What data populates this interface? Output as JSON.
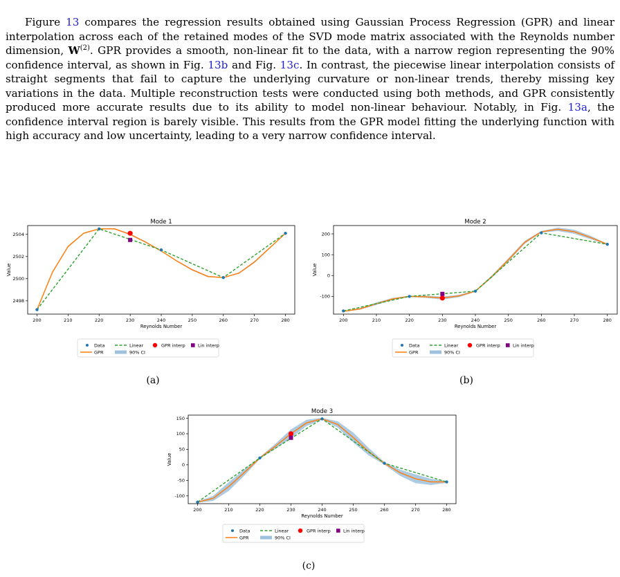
{
  "paragraph": {
    "s1": "Figure ",
    "ref1": "13",
    "s2": " compares the regression results obtained using Gaussian Process Regression (GPR) and linear interpolation across each of the retained modes of the SVD mode matrix associated with the Reynolds number dimension, ",
    "matrix_symbol": "W",
    "matrix_sup": "(2)",
    "s3": ". GPR provides a smooth, non-linear fit to the data, with a narrow region representing the 90% confidence interval, as shown in Fig. ",
    "ref2": "13b",
    "s4": " and Fig. ",
    "ref3": "13c",
    "s5": ". In contrast, the piecewise linear interpolation consists of straight segments that fail to capture the underlying curvature or non-linear trends, thereby missing key variations in the data. Multiple reconstruction tests were conducted using both methods, and GPR consistently produced more accurate results due to its ability to model non-linear behaviour. Notably, in Fig. ",
    "ref4": "13a",
    "s6": ", the confidence interval region is barely visible. This results from the GPR model fitting the underlying function with high accuracy and low uncertainty, leading to a very narrow confidence interval.",
    "link_color": "#1f1fd0"
  },
  "captions": [
    "(a)",
    "(b)",
    "(c)"
  ],
  "legend": {
    "data": "Data",
    "linear": "Linear",
    "gpr_interp": "GPR interp",
    "lin_interp": "Lin interp",
    "gpr": "GPR",
    "ci": "90% CI"
  },
  "colors": {
    "data": "#1f77b4",
    "gpr": "#ff7f0e",
    "linear": "#2ca02c",
    "ci": "#9ec1dd",
    "gpr_interp": "#ff0000",
    "lin_interp": "#800080"
  },
  "chart_data": [
    {
      "type": "line",
      "title": "Mode 1",
      "xlabel": "Reynolds Number",
      "ylabel": "Value",
      "xlim": [
        197,
        283
      ],
      "ylim": [
        2496.8,
        2504.8
      ],
      "xticks": [
        200,
        210,
        220,
        230,
        240,
        250,
        260,
        270,
        280
      ],
      "yticks": [
        2498,
        2500,
        2502,
        2504
      ],
      "data": {
        "x": [
          200,
          220,
          240,
          260,
          280
        ],
        "y": [
          2497.2,
          2504.5,
          2502.6,
          2500.1,
          2504.1
        ]
      },
      "gpr": {
        "x": [
          200,
          205,
          210,
          215,
          220,
          225,
          230,
          235,
          240,
          245,
          250,
          255,
          260,
          265,
          270,
          275,
          280
        ],
        "y": [
          2497.2,
          2500.6,
          2502.9,
          2504.1,
          2504.5,
          2504.5,
          2504.0,
          2503.3,
          2502.5,
          2501.6,
          2500.8,
          2500.2,
          2500.1,
          2500.5,
          2501.5,
          2502.8,
          2504.1
        ]
      },
      "ci_halfwidth": [
        0.02,
        0.05,
        0.07,
        0.06,
        0.03,
        0.05,
        0.07,
        0.06,
        0.03,
        0.05,
        0.07,
        0.06,
        0.03,
        0.06,
        0.08,
        0.07,
        0.02
      ],
      "gpr_interp": {
        "x": 230,
        "y": 2504.1
      },
      "lin_interp": {
        "x": 230,
        "y": 2503.5
      }
    },
    {
      "type": "line",
      "title": "Mode 2",
      "xlabel": "Reynolds Number",
      "ylabel": "Value",
      "xlim": [
        197,
        283
      ],
      "ylim": [
        -185,
        240
      ],
      "xticks": [
        200,
        210,
        220,
        230,
        240,
        250,
        260,
        270,
        280
      ],
      "yticks": [
        -100,
        0,
        100,
        200
      ],
      "data": {
        "x": [
          200,
          220,
          240,
          260,
          280
        ],
        "y": [
          -170,
          -100,
          -75,
          205,
          150
        ]
      },
      "gpr": {
        "x": [
          200,
          205,
          210,
          215,
          220,
          225,
          230,
          235,
          240,
          245,
          250,
          255,
          260,
          265,
          270,
          275,
          280
        ],
        "y": [
          -172,
          -160,
          -135,
          -112,
          -100,
          -102,
          -108,
          -98,
          -75,
          -5,
          75,
          160,
          210,
          222,
          210,
          182,
          150
        ]
      },
      "ci_halfwidth": [
        2,
        4,
        6,
        5,
        3,
        5,
        7,
        6,
        3,
        6,
        8,
        7,
        4,
        8,
        10,
        8,
        3
      ],
      "gpr_interp": {
        "x": 230,
        "y": -108
      },
      "lin_interp": {
        "x": 230,
        "y": -88
      }
    },
    {
      "type": "line",
      "title": "Mode 3",
      "xlabel": "Reynolds Number",
      "ylabel": "Value",
      "xlim": [
        197,
        283
      ],
      "ylim": [
        -125,
        160
      ],
      "xticks": [
        200,
        210,
        220,
        230,
        240,
        250,
        260,
        270,
        280
      ],
      "yticks": [
        -100,
        -50,
        0,
        50,
        100,
        150
      ],
      "data": {
        "x": [
          200,
          220,
          240,
          260,
          280
        ],
        "y": [
          -120,
          22,
          148,
          5,
          -55
        ]
      },
      "gpr": {
        "x": [
          200,
          205,
          210,
          215,
          220,
          225,
          230,
          235,
          240,
          245,
          250,
          255,
          260,
          265,
          270,
          275,
          280
        ],
        "y": [
          -120,
          -108,
          -70,
          -25,
          22,
          60,
          100,
          135,
          148,
          130,
          88,
          42,
          5,
          -25,
          -45,
          -55,
          -55
        ]
      },
      "ci_halfwidth": [
        2,
        8,
        14,
        10,
        3,
        8,
        14,
        10,
        3,
        10,
        16,
        12,
        4,
        10,
        14,
        10,
        3
      ],
      "gpr_interp": {
        "x": 230,
        "y": 100
      },
      "lin_interp": {
        "x": 230,
        "y": 87
      }
    }
  ]
}
